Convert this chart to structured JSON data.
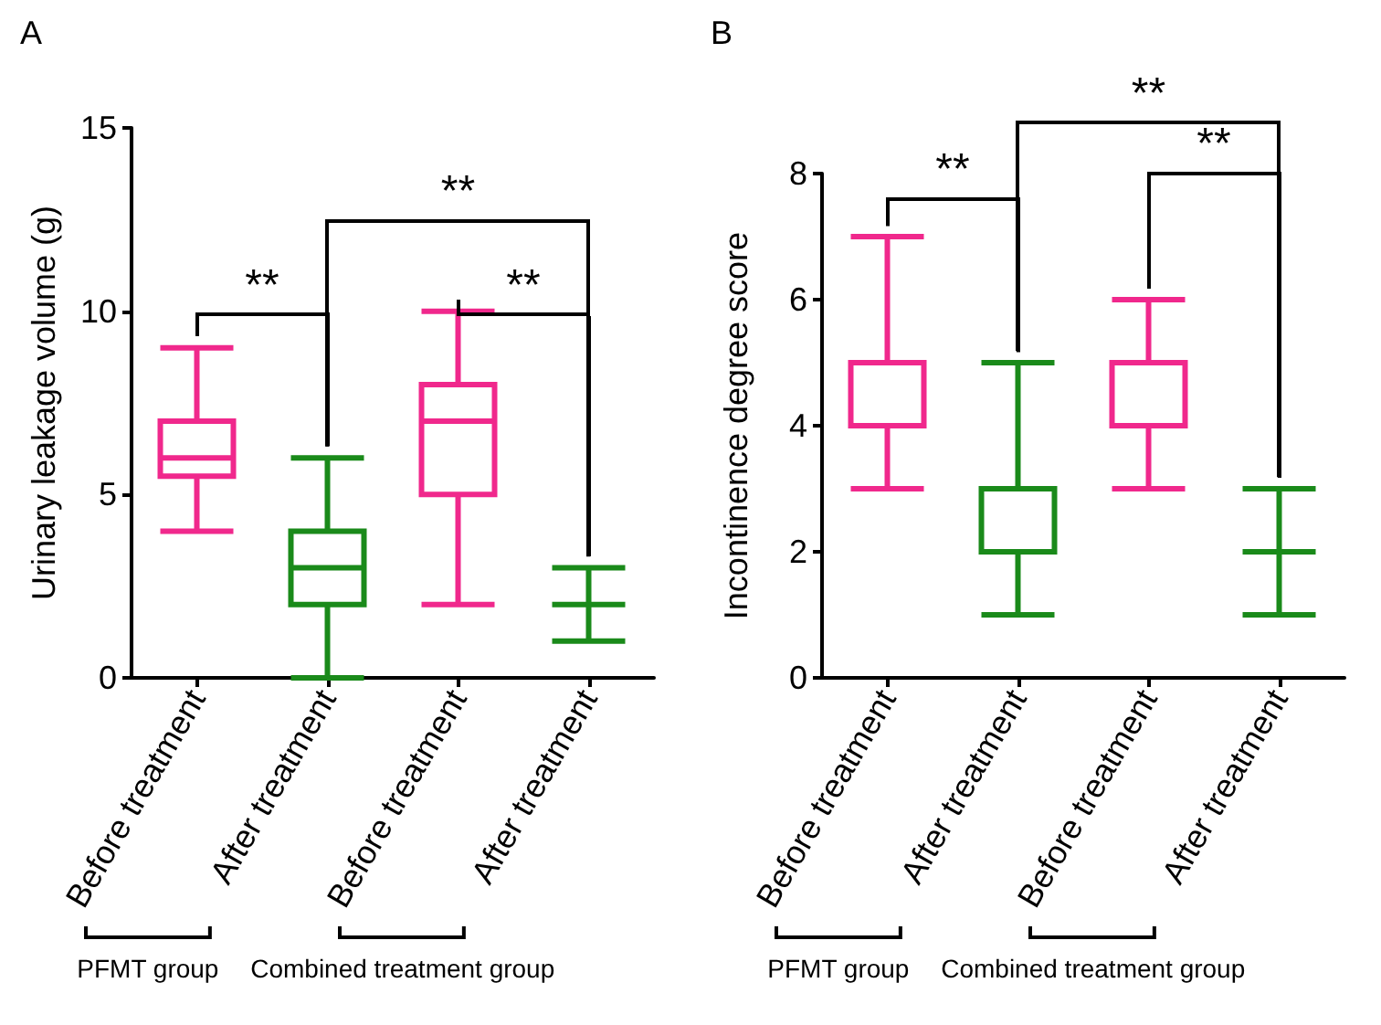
{
  "chart_data": [
    {
      "type": "box",
      "title": "A",
      "ylabel": "Urinary leakage volume (g)",
      "categories": [
        "Before treatment",
        "After treatment",
        "Before treatment",
        "After treatment"
      ],
      "boxes": [
        {
          "low": 4,
          "q1": 5.5,
          "median": 6,
          "q3": 7,
          "high": 9
        },
        {
          "low": 0,
          "q1": 2,
          "median": 3,
          "q3": 4,
          "high": 6
        },
        {
          "low": 2,
          "q1": 5,
          "median": 7,
          "q3": 8,
          "high": 10
        },
        {
          "low": 1,
          "q1": 2,
          "median": 2,
          "q3": 2,
          "high": 3
        }
      ],
      "colors": [
        "#f0288c",
        "#1a8a1a",
        "#f0288c",
        "#1a8a1a"
      ],
      "ylim": [
        0,
        15
      ],
      "yticks": [
        0,
        5,
        10,
        15
      ],
      "grid": false,
      "annotations": [
        "**",
        "**",
        "**",
        "PFMT group",
        "Combined treatment group"
      ]
    },
    {
      "type": "box",
      "title": "B",
      "ylabel": "Incontinence degree score",
      "categories": [
        "Before treatment",
        "After treatment",
        "Before treatment",
        "After treatment"
      ],
      "boxes": [
        {
          "low": 3,
          "q1": 4,
          "median": 4,
          "q3": 5,
          "high": 7
        },
        {
          "low": 1,
          "q1": 2,
          "median": 3,
          "q3": 3,
          "high": 5
        },
        {
          "low": 3,
          "q1": 4,
          "median": 4,
          "q3": 5,
          "high": 6
        },
        {
          "low": 1,
          "q1": 2,
          "median": 2,
          "q3": 2,
          "high": 3
        }
      ],
      "colors": [
        "#f0288c",
        "#1a8a1a",
        "#f0288c",
        "#1a8a1a"
      ],
      "ylim": [
        0,
        8
      ],
      "yticks": [
        0,
        2,
        4,
        6,
        8
      ],
      "grid": false,
      "annotations": [
        "**",
        "**",
        "**",
        "PFMT group",
        "Combined treatment group"
      ]
    }
  ]
}
